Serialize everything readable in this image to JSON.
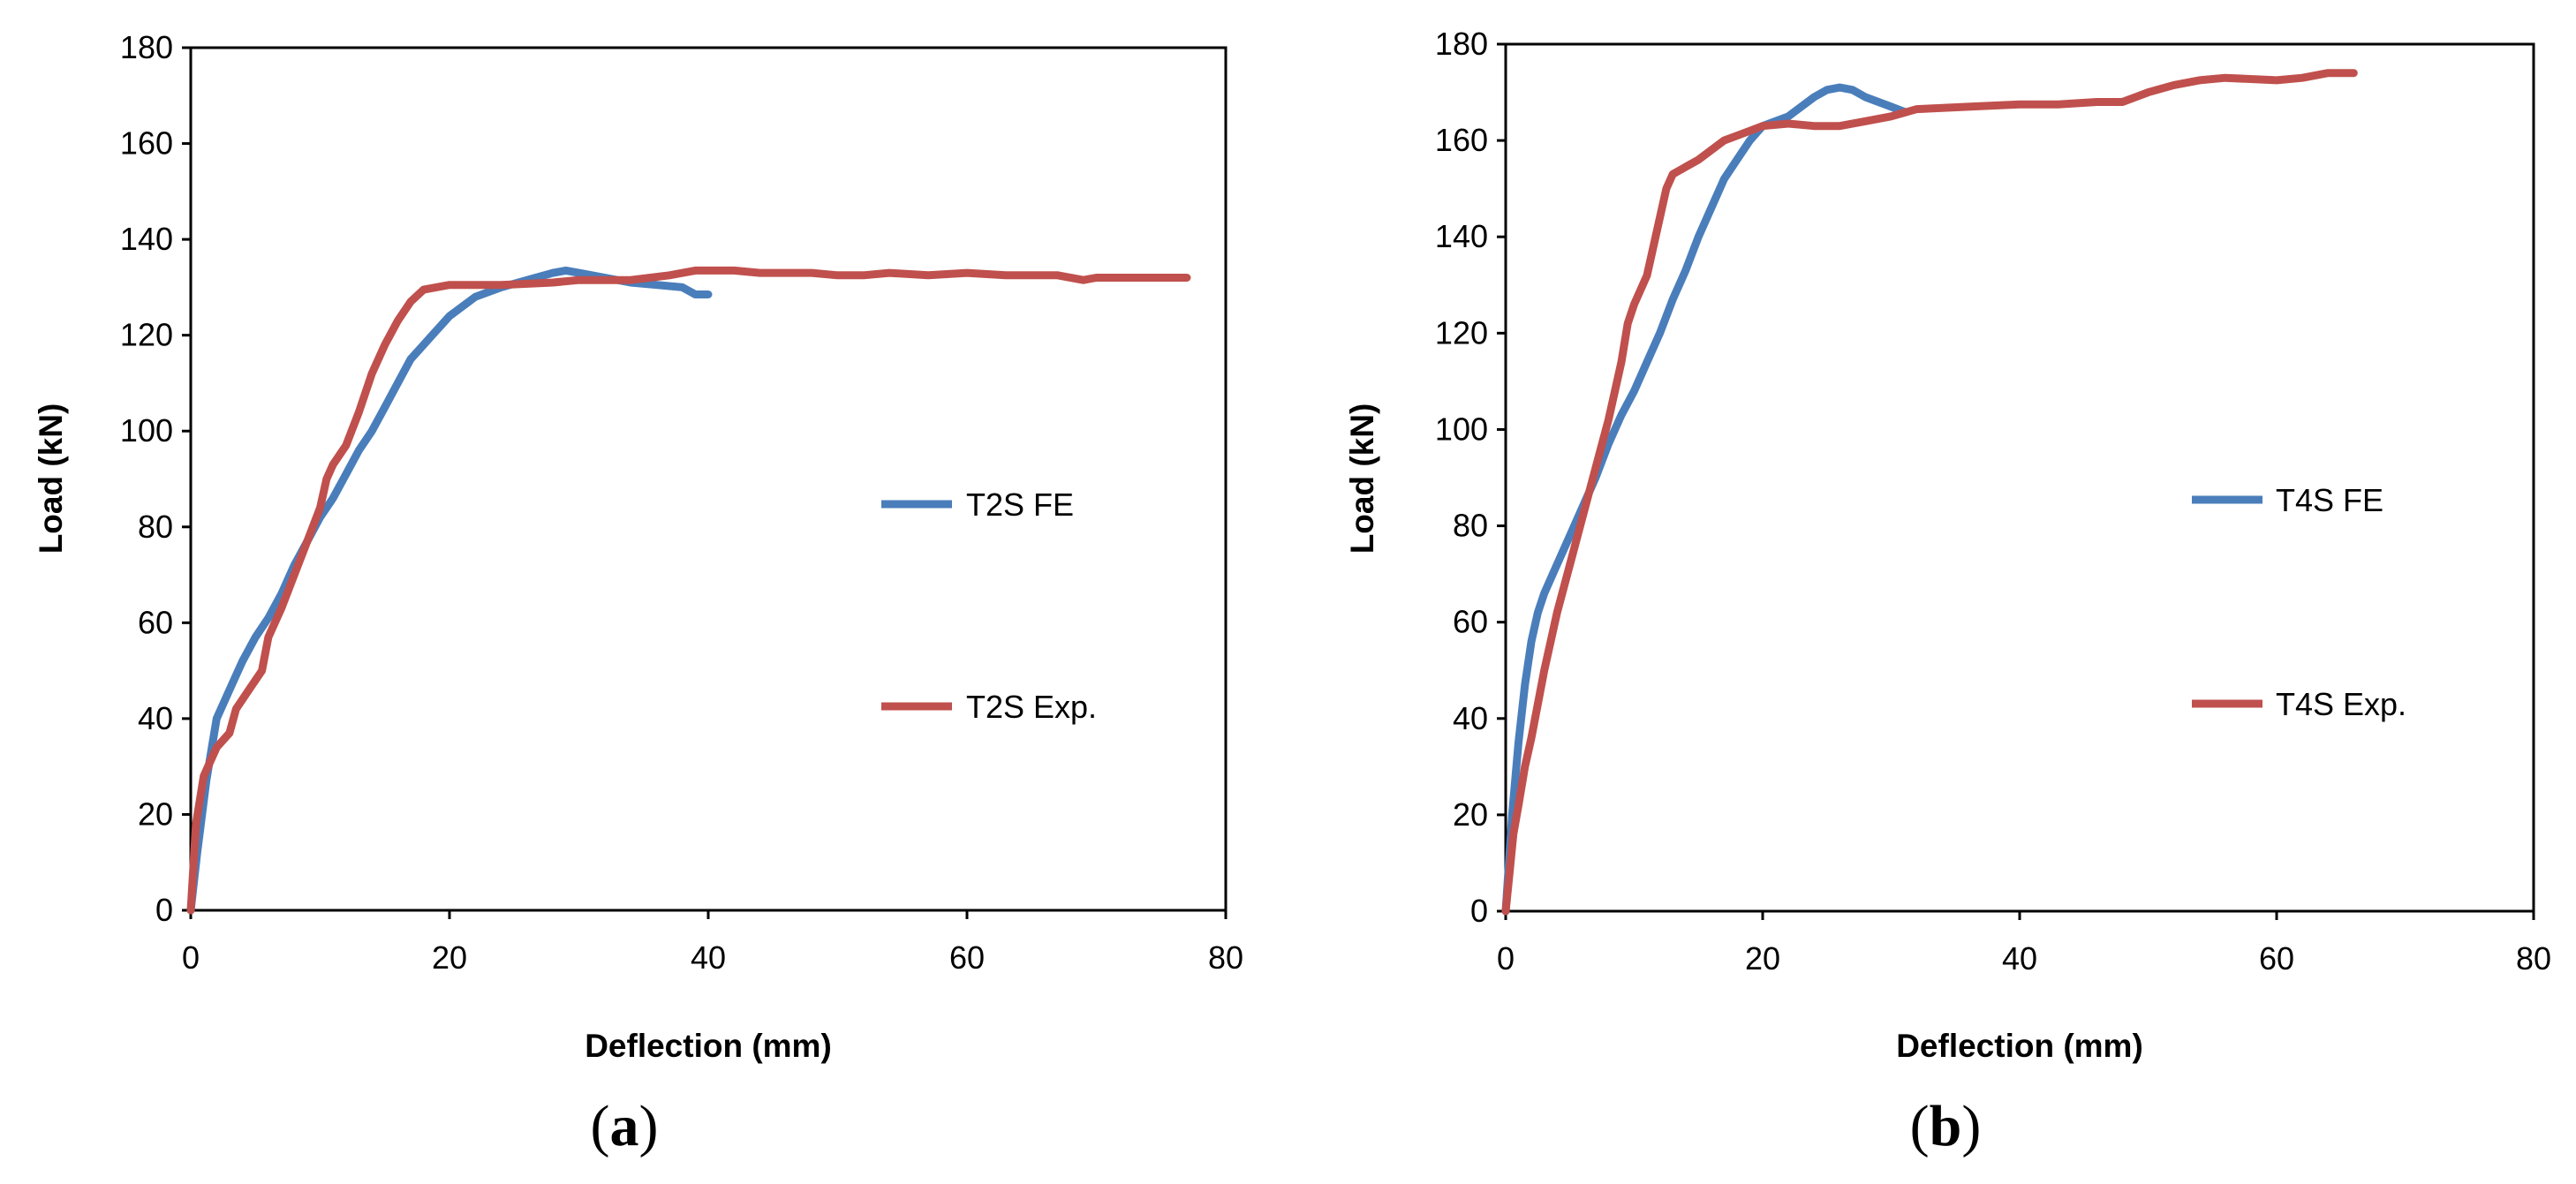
{
  "chart_data": [
    {
      "type": "line",
      "panel_label": "(a)",
      "panel_letter": "a",
      "xlabel": "Deflection (mm)",
      "ylabel": "Load (kN)",
      "xlim": [
        0,
        80
      ],
      "ylim": [
        0,
        180
      ],
      "xticks": [
        "0",
        "20",
        "40",
        "60",
        "80"
      ],
      "yticks": [
        "0",
        "20",
        "40",
        "60",
        "80",
        "100",
        "120",
        "140",
        "160",
        "180"
      ],
      "grid": false,
      "series": [
        {
          "name": "T2S FE",
          "color": "#4a7ebb",
          "points": [
            [
              0,
              0
            ],
            [
              0.5,
              12
            ],
            [
              1.2,
              27
            ],
            [
              2,
              40
            ],
            [
              3,
              46
            ],
            [
              4,
              52
            ],
            [
              5,
              57
            ],
            [
              6,
              61
            ],
            [
              7,
              66
            ],
            [
              8,
              72
            ],
            [
              9,
              77
            ],
            [
              10,
              82
            ],
            [
              11,
              86
            ],
            [
              12,
              91
            ],
            [
              13,
              96
            ],
            [
              14,
              100
            ],
            [
              15,
              105
            ],
            [
              16,
              110
            ],
            [
              17,
              115
            ],
            [
              18,
              118
            ],
            [
              19,
              121
            ],
            [
              20,
              124
            ],
            [
              22,
              128
            ],
            [
              24,
              130
            ],
            [
              26,
              131.5
            ],
            [
              28,
              133
            ],
            [
              29,
              133.5
            ],
            [
              30,
              133
            ],
            [
              32,
              132
            ],
            [
              34,
              131
            ],
            [
              36,
              130.5
            ],
            [
              38,
              130
            ],
            [
              39,
              128.5
            ],
            [
              40,
              128.5
            ]
          ]
        },
        {
          "name": "T2S Exp.",
          "color": "#c0504d",
          "points": [
            [
              0,
              0
            ],
            [
              0.4,
              18
            ],
            [
              1,
              28
            ],
            [
              2,
              34
            ],
            [
              3,
              37
            ],
            [
              3.5,
              42
            ],
            [
              4.5,
              46
            ],
            [
              5.5,
              50
            ],
            [
              6,
              57
            ],
            [
              7,
              63
            ],
            [
              8,
              70
            ],
            [
              9,
              77
            ],
            [
              10,
              84
            ],
            [
              10.5,
              90
            ],
            [
              11,
              93
            ],
            [
              12,
              97
            ],
            [
              13,
              104
            ],
            [
              14,
              112
            ],
            [
              15,
              118
            ],
            [
              16,
              123
            ],
            [
              17,
              127
            ],
            [
              18,
              129.5
            ],
            [
              20,
              130.5
            ],
            [
              24,
              130.5
            ],
            [
              28,
              131
            ],
            [
              30,
              131.5
            ],
            [
              34,
              131.5
            ],
            [
              37,
              132.5
            ],
            [
              39,
              133.5
            ],
            [
              42,
              133.5
            ],
            [
              44,
              133
            ],
            [
              48,
              133
            ],
            [
              50,
              132.5
            ],
            [
              52,
              132.5
            ],
            [
              54,
              133
            ],
            [
              57,
              132.5
            ],
            [
              60,
              133
            ],
            [
              63,
              132.5
            ],
            [
              67,
              132.5
            ],
            [
              69,
              131.5
            ],
            [
              70,
              132
            ],
            [
              74,
              132
            ],
            [
              77,
              132
            ]
          ]
        }
      ]
    },
    {
      "type": "line",
      "panel_label": "(b)",
      "panel_letter": "b",
      "xlabel": "Deflection (mm)",
      "ylabel": "Load (kN)",
      "xlim": [
        0,
        80
      ],
      "ylim": [
        0,
        180
      ],
      "xticks": [
        "0",
        "20",
        "40",
        "60",
        "80"
      ],
      "yticks": [
        "0",
        "20",
        "40",
        "60",
        "80",
        "100",
        "120",
        "140",
        "160",
        "180"
      ],
      "grid": false,
      "series": [
        {
          "name": "T4S FE",
          "color": "#4a7ebb",
          "points": [
            [
              0,
              0
            ],
            [
              0.5,
              20
            ],
            [
              1,
              35
            ],
            [
              1.5,
              47
            ],
            [
              2,
              56
            ],
            [
              2.5,
              62
            ],
            [
              3,
              66
            ],
            [
              4,
              72
            ],
            [
              5,
              78
            ],
            [
              6,
              84
            ],
            [
              7,
              90
            ],
            [
              8,
              97
            ],
            [
              9,
              103
            ],
            [
              10,
              108
            ],
            [
              11,
              114
            ],
            [
              12,
              120
            ],
            [
              13,
              127
            ],
            [
              14,
              133
            ],
            [
              15,
              140
            ],
            [
              16,
              146
            ],
            [
              17,
              152
            ],
            [
              18,
              156
            ],
            [
              19,
              160
            ],
            [
              20,
              163
            ],
            [
              22,
              165
            ],
            [
              24,
              169
            ],
            [
              25,
              170.5
            ],
            [
              26,
              171
            ],
            [
              27,
              170.5
            ],
            [
              28,
              169
            ],
            [
              30,
              167
            ],
            [
              31,
              166
            ]
          ]
        },
        {
          "name": "T4S Exp.",
          "color": "#c0504d",
          "points": [
            [
              0,
              0
            ],
            [
              0.3,
              8
            ],
            [
              0.6,
              16
            ],
            [
              1,
              22
            ],
            [
              1.5,
              30
            ],
            [
              2,
              36
            ],
            [
              3,
              50
            ],
            [
              4,
              62
            ],
            [
              5,
              72
            ],
            [
              6,
              82
            ],
            [
              7,
              92
            ],
            [
              8,
              102
            ],
            [
              9,
              114
            ],
            [
              9.5,
              122
            ],
            [
              10,
              126
            ],
            [
              11,
              132
            ],
            [
              11.5,
              138
            ],
            [
              12,
              144
            ],
            [
              12.5,
              150
            ],
            [
              13,
              153
            ],
            [
              14,
              154.5
            ],
            [
              15,
              156
            ],
            [
              16,
              158
            ],
            [
              17,
              160
            ],
            [
              18,
              161
            ],
            [
              20,
              163
            ],
            [
              22,
              163.5
            ],
            [
              24,
              163
            ],
            [
              26,
              163
            ],
            [
              28,
              164
            ],
            [
              30,
              165
            ],
            [
              32,
              166.5
            ],
            [
              36,
              167
            ],
            [
              40,
              167.5
            ],
            [
              43,
              167.5
            ],
            [
              46,
              168
            ],
            [
              48,
              168
            ],
            [
              50,
              170
            ],
            [
              52,
              171.5
            ],
            [
              54,
              172.5
            ],
            [
              56,
              173
            ],
            [
              60,
              172.5
            ],
            [
              62,
              173
            ],
            [
              64,
              174
            ],
            [
              66,
              174
            ]
          ]
        }
      ]
    }
  ]
}
